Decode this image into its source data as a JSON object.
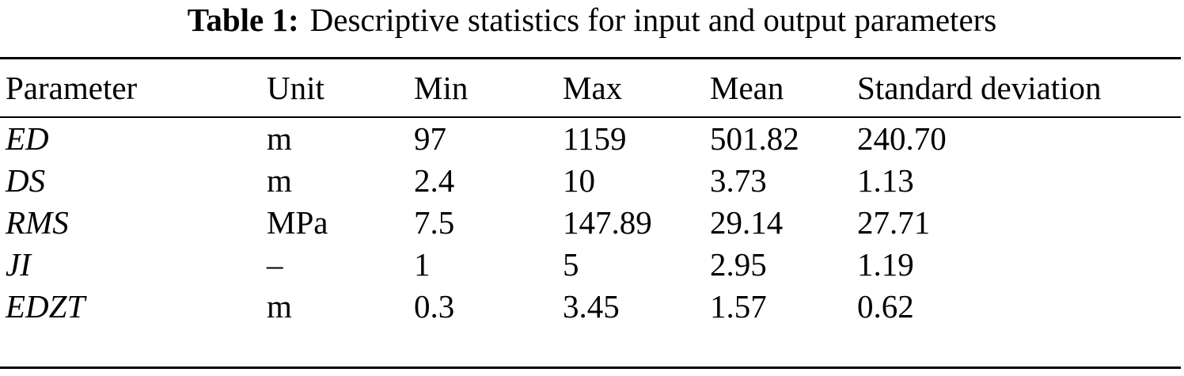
{
  "caption": {
    "label": "Table 1:",
    "text": "Descriptive statistics for input and output parameters"
  },
  "table": {
    "headers": [
      "Parameter",
      "Unit",
      "Min",
      "Max",
      "Mean",
      "Standard deviation"
    ],
    "rows": [
      [
        "ED",
        "m",
        "97",
        "1159",
        "501.82",
        "240.70"
      ],
      [
        "DS",
        "m",
        "2.4",
        "10",
        "3.73",
        "1.13"
      ],
      [
        "RMS",
        "MPa",
        "7.5",
        "147.89",
        "29.14",
        "27.71"
      ],
      [
        "JI",
        "–",
        "1",
        "5",
        "2.95",
        "1.19"
      ],
      [
        "EDZT",
        "m",
        "0.3",
        "3.45",
        "1.57",
        "0.62"
      ]
    ]
  }
}
